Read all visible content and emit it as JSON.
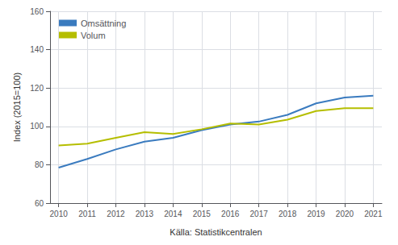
{
  "chart_data": {
    "type": "line",
    "ylabel": "Index (2015=100)",
    "xlabel": "Källa: Statistikcentralen",
    "x": [
      2010,
      2011,
      2012,
      2013,
      2014,
      2015,
      2016,
      2017,
      2018,
      2019,
      2020,
      2021
    ],
    "series": [
      {
        "name": "Omsättning",
        "color": "#3a7bbf",
        "values": [
          78.5,
          83,
          88,
          92,
          94,
          98,
          101,
          102.5,
          106,
          112,
          115,
          116
        ]
      },
      {
        "name": "Volum",
        "color": "#b5be00",
        "values": [
          90,
          91,
          94,
          97,
          96,
          98.5,
          101.5,
          101,
          103.5,
          108,
          109.5,
          109.5
        ]
      }
    ],
    "xlim": [
      2009.7,
      2021.3
    ],
    "xticks": [
      2010,
      2011,
      2012,
      2013,
      2014,
      2015,
      2016,
      2017,
      2018,
      2019,
      2020,
      2021
    ],
    "ylim": [
      60,
      160
    ],
    "yticks": [
      60,
      80,
      100,
      120,
      140,
      160
    ],
    "grid": true,
    "legend": "upper left"
  }
}
